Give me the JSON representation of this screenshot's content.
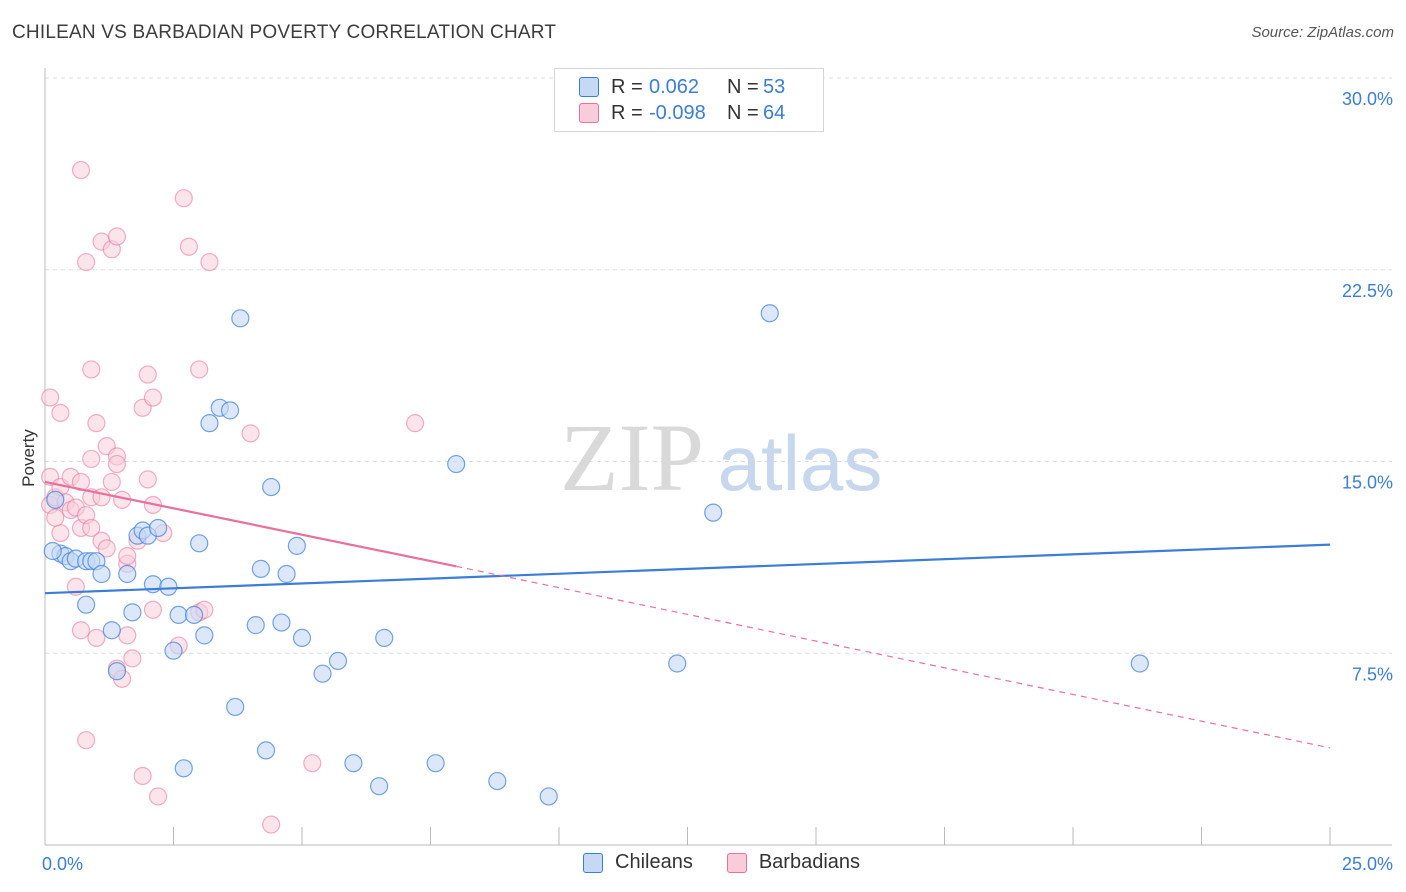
{
  "header": {
    "title": "CHILEAN VS BARBADIAN POVERTY CORRELATION CHART",
    "source": "Source: ZipAtlas.com"
  },
  "watermark": {
    "zip": "ZIP",
    "atlas": "atlas"
  },
  "legend": {
    "rows": [
      {
        "r_label": "R =",
        "r_value": "0.062",
        "n_label": "N =",
        "n_value": "53"
      },
      {
        "r_label": "R =",
        "r_value": "-0.098",
        "n_label": "N =",
        "n_value": "64"
      }
    ]
  },
  "bottom_legend": {
    "series1": "Chileans",
    "series2": "Barbadians"
  },
  "colors": {
    "blue": "#3b7dd8",
    "blue_fill": "#c5d9f5",
    "pink": "#e8709a",
    "pink_fill": "#f8cdd9",
    "axis_label": "#3b7dd8",
    "grid": "#dddddd"
  },
  "chart_data": {
    "type": "scatter",
    "title": "CHILEAN VS BARBADIAN POVERTY CORRELATION CHART",
    "xlabel": "",
    "ylabel": "Poverty",
    "xlim": [
      0,
      25
    ],
    "ylim": [
      0,
      30
    ],
    "x_tick_labels": [
      "0.0%",
      "25.0%"
    ],
    "y_ticks": [
      {
        "value": 7.5,
        "label": "7.5%"
      },
      {
        "value": 15,
        "label": "15.0%"
      },
      {
        "value": 22.5,
        "label": "22.5%"
      },
      {
        "value": 30,
        "label": "30.0%"
      }
    ],
    "series": [
      {
        "name": "Chileans",
        "color": "#3b7dd8",
        "trend": {
          "x": [
            0,
            25
          ],
          "y": [
            9.85,
            11.75
          ],
          "style": "solid"
        },
        "points": [
          [
            0.2,
            13.5
          ],
          [
            0.3,
            11.4
          ],
          [
            0.4,
            11.3
          ],
          [
            0.5,
            11.1
          ],
          [
            0.6,
            11.2
          ],
          [
            0.8,
            11.1
          ],
          [
            0.9,
            11.1
          ],
          [
            0.8,
            9.4
          ],
          [
            1.0,
            11.1
          ],
          [
            1.1,
            10.6
          ],
          [
            1.3,
            8.4
          ],
          [
            1.4,
            6.8
          ],
          [
            1.6,
            10.6
          ],
          [
            1.7,
            9.1
          ],
          [
            1.8,
            12.1
          ],
          [
            1.9,
            12.3
          ],
          [
            2.0,
            12.1
          ],
          [
            2.1,
            10.2
          ],
          [
            2.2,
            12.4
          ],
          [
            2.4,
            10.1
          ],
          [
            2.5,
            7.6
          ],
          [
            2.6,
            9.0
          ],
          [
            2.7,
            3.0
          ],
          [
            2.9,
            9.0
          ],
          [
            3.0,
            11.8
          ],
          [
            3.1,
            8.2
          ],
          [
            3.2,
            16.5
          ],
          [
            3.4,
            17.1
          ],
          [
            3.6,
            17.0
          ],
          [
            3.7,
            5.4
          ],
          [
            3.8,
            20.6
          ],
          [
            4.1,
            8.6
          ],
          [
            4.2,
            10.8
          ],
          [
            4.3,
            3.7
          ],
          [
            4.4,
            14.0
          ],
          [
            4.6,
            8.7
          ],
          [
            4.7,
            10.6
          ],
          [
            4.9,
            11.7
          ],
          [
            5.0,
            8.1
          ],
          [
            5.4,
            6.7
          ],
          [
            5.7,
            7.2
          ],
          [
            6.0,
            3.2
          ],
          [
            6.5,
            2.3
          ],
          [
            6.6,
            8.1
          ],
          [
            7.6,
            3.2
          ],
          [
            8.0,
            14.9
          ],
          [
            8.8,
            2.5
          ],
          [
            9.8,
            1.9
          ],
          [
            12.3,
            7.1
          ],
          [
            13.0,
            13.0
          ],
          [
            14.1,
            20.8
          ],
          [
            21.3,
            7.1
          ],
          [
            0.15,
            11.5
          ]
        ]
      },
      {
        "name": "Barbadians",
        "color": "#e8709a",
        "trend": {
          "x": [
            0,
            8.0,
            25
          ],
          "y": [
            14.2,
            10.9,
            3.8
          ],
          "style": "solid-then-dashed"
        },
        "points": [
          [
            0.1,
            14.4
          ],
          [
            0.1,
            13.3
          ],
          [
            0.2,
            13.6
          ],
          [
            0.3,
            14.0
          ],
          [
            0.3,
            12.2
          ],
          [
            0.3,
            16.9
          ],
          [
            0.4,
            13.4
          ],
          [
            0.5,
            13.1
          ],
          [
            0.5,
            14.4
          ],
          [
            0.6,
            10.1
          ],
          [
            0.6,
            13.2
          ],
          [
            0.7,
            14.2
          ],
          [
            0.7,
            12.4
          ],
          [
            0.7,
            8.4
          ],
          [
            0.7,
            26.4
          ],
          [
            0.8,
            22.8
          ],
          [
            0.8,
            12.9
          ],
          [
            0.8,
            4.1
          ],
          [
            0.9,
            12.4
          ],
          [
            0.9,
            13.6
          ],
          [
            0.9,
            18.6
          ],
          [
            0.9,
            15.1
          ],
          [
            1.0,
            8.1
          ],
          [
            1.0,
            16.5
          ],
          [
            1.1,
            23.6
          ],
          [
            1.1,
            13.6
          ],
          [
            1.1,
            11.9
          ],
          [
            1.2,
            15.6
          ],
          [
            1.2,
            11.6
          ],
          [
            1.3,
            23.3
          ],
          [
            1.3,
            14.2
          ],
          [
            1.4,
            23.8
          ],
          [
            1.4,
            15.2
          ],
          [
            1.4,
            14.9
          ],
          [
            1.4,
            6.9
          ],
          [
            1.5,
            13.5
          ],
          [
            1.5,
            6.5
          ],
          [
            1.6,
            8.2
          ],
          [
            1.6,
            11.0
          ],
          [
            1.6,
            11.3
          ],
          [
            1.7,
            7.3
          ],
          [
            1.8,
            11.9
          ],
          [
            1.9,
            2.7
          ],
          [
            1.9,
            17.1
          ],
          [
            2.0,
            14.3
          ],
          [
            2.0,
            18.4
          ],
          [
            2.1,
            13.3
          ],
          [
            2.1,
            9.2
          ],
          [
            2.1,
            17.5
          ],
          [
            2.2,
            1.9
          ],
          [
            2.3,
            12.2
          ],
          [
            2.6,
            7.8
          ],
          [
            2.7,
            25.3
          ],
          [
            2.8,
            23.4
          ],
          [
            3.0,
            9.1
          ],
          [
            3.0,
            18.6
          ],
          [
            3.1,
            9.2
          ],
          [
            3.2,
            22.8
          ],
          [
            4.0,
            16.1
          ],
          [
            4.4,
            0.8
          ],
          [
            5.2,
            3.2
          ],
          [
            7.2,
            16.5
          ],
          [
            0.1,
            17.5
          ],
          [
            0.2,
            12.8
          ]
        ]
      }
    ]
  }
}
